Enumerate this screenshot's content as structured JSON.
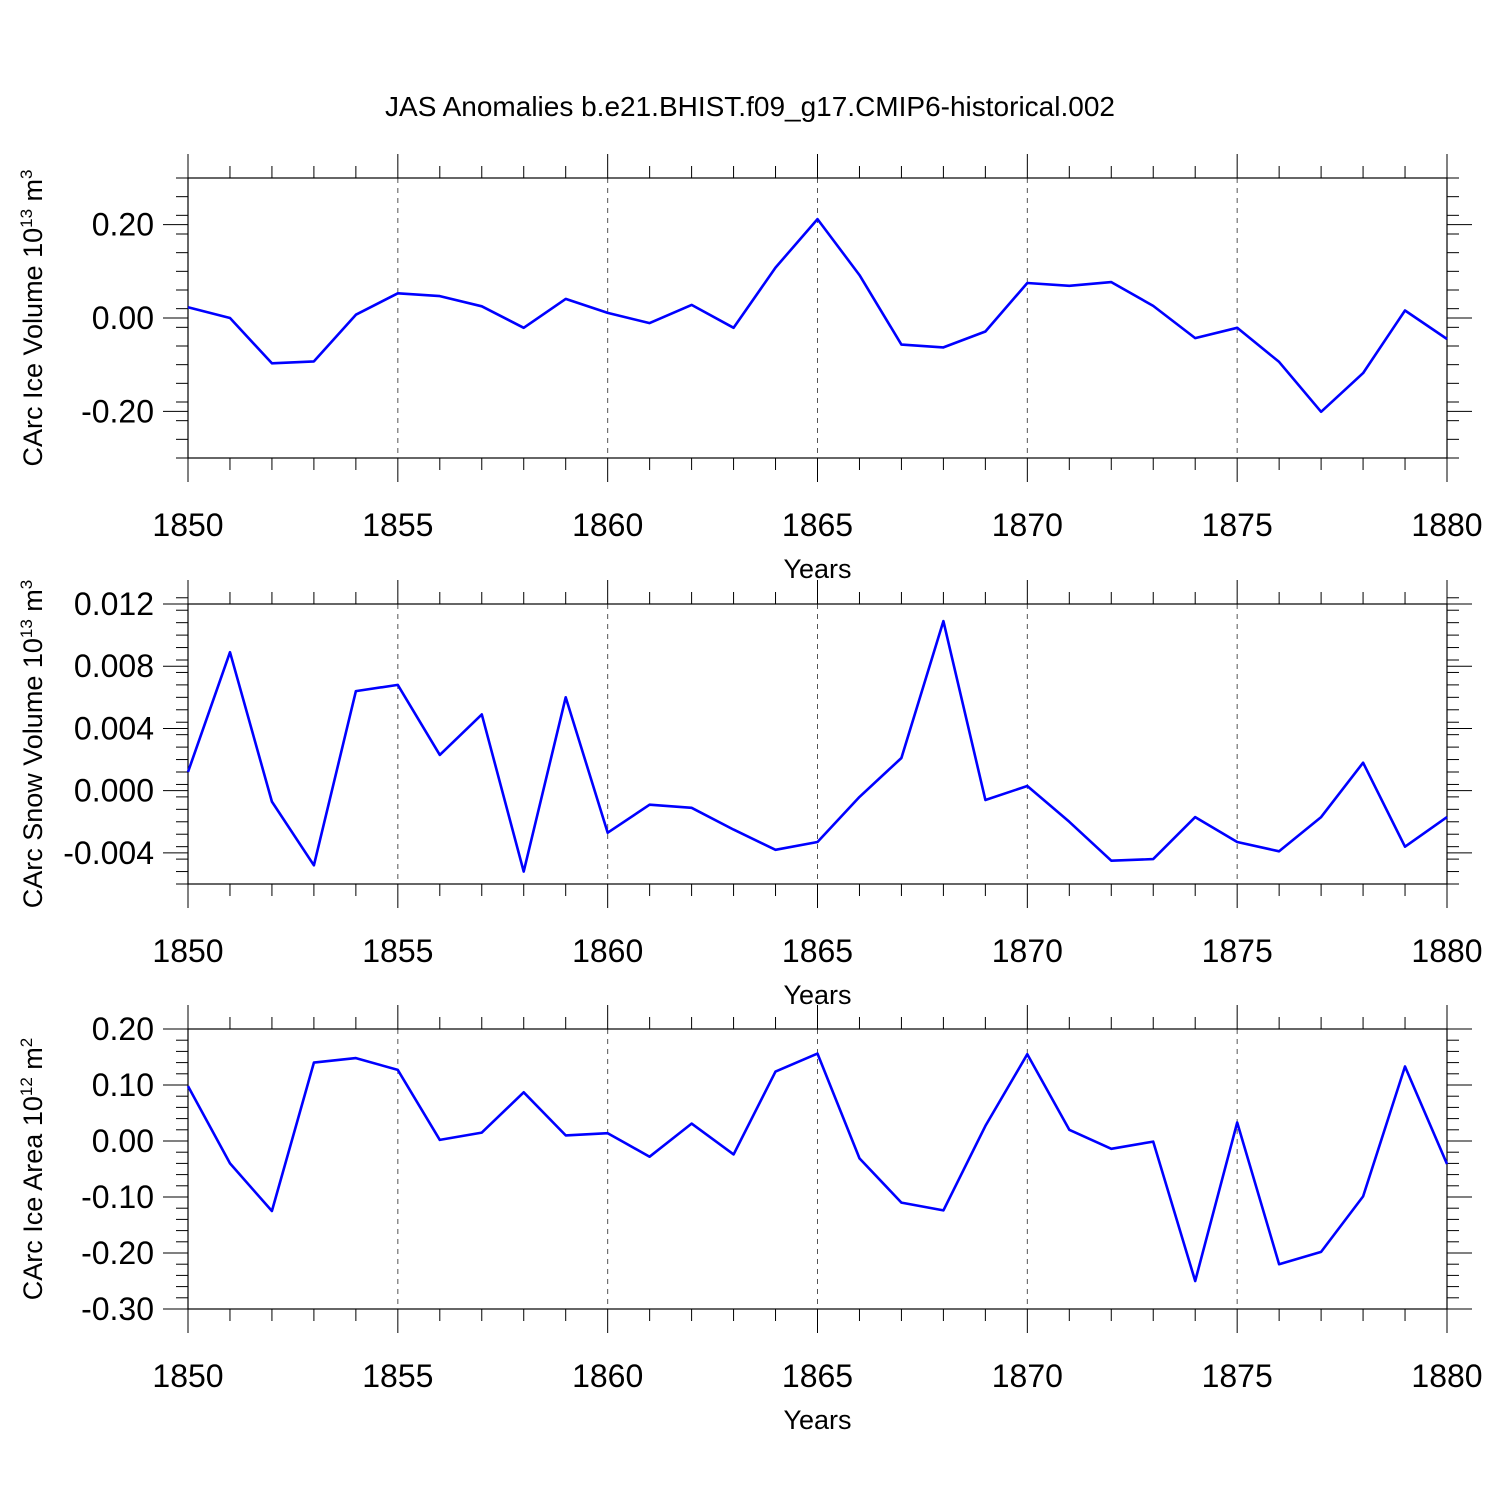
{
  "figure": {
    "title": "JAS Anomalies b.e21.BHIST.f09_g17.CMIP6-historical.002",
    "line_color": "#0000ff"
  },
  "chart_data": [
    {
      "type": "line",
      "ylabel": "CArc Ice Volume 10",
      "ylabel_sup": "13",
      "ylabel_unit": "m",
      "ylabel_unit_sup": "3",
      "xlabel": "Years",
      "xlim": [
        1850,
        1880
      ],
      "ylim": [
        -0.3,
        0.3
      ],
      "x_ticks": [
        1850,
        1855,
        1860,
        1865,
        1870,
        1875,
        1880
      ],
      "x_tick_labels": [
        "1850",
        "1855",
        "1860",
        "1865",
        "1870",
        "1875",
        "1880"
      ],
      "y_ticks": [
        -0.2,
        0.0,
        0.2
      ],
      "y_tick_labels": [
        "-0.20",
        "0.00",
        "0.20"
      ],
      "y_minor_step": 0.04,
      "grid": "dashed vertical",
      "x": [
        1850,
        1851,
        1852,
        1853,
        1854,
        1855,
        1856,
        1857,
        1858,
        1859,
        1860,
        1861,
        1862,
        1863,
        1864,
        1865,
        1866,
        1867,
        1868,
        1869,
        1870,
        1871,
        1872,
        1873,
        1874,
        1875,
        1876,
        1877,
        1878,
        1879,
        1880
      ],
      "series": [
        {
          "name": "CArc Ice Volume",
          "values": [
            0.023,
            0.0,
            -0.097,
            -0.093,
            0.007,
            0.053,
            0.047,
            0.025,
            -0.021,
            0.041,
            0.011,
            -0.011,
            0.028,
            -0.021,
            0.108,
            0.212,
            0.092,
            -0.057,
            -0.063,
            -0.029,
            0.075,
            0.069,
            0.077,
            0.026,
            -0.043,
            -0.021,
            -0.094,
            -0.201,
            -0.118,
            0.016,
            -0.045
          ]
        }
      ]
    },
    {
      "type": "line",
      "ylabel": "CArc Snow Volume 10",
      "ylabel_sup": "13",
      "ylabel_unit": "m",
      "ylabel_unit_sup": "3",
      "xlabel": "Years",
      "xlim": [
        1850,
        1880
      ],
      "ylim": [
        -0.006,
        0.012
      ],
      "x_ticks": [
        1850,
        1855,
        1860,
        1865,
        1870,
        1875,
        1880
      ],
      "x_tick_labels": [
        "1850",
        "1855",
        "1860",
        "1865",
        "1870",
        "1875",
        "1880"
      ],
      "y_ticks": [
        -0.004,
        0.0,
        0.004,
        0.008,
        0.012
      ],
      "y_tick_labels": [
        "-0.004",
        "0.000",
        "0.004",
        "0.008",
        "0.012"
      ],
      "y_minor_step": 0.0008,
      "grid": "dashed vertical",
      "x": [
        1850,
        1851,
        1852,
        1853,
        1854,
        1855,
        1856,
        1857,
        1858,
        1859,
        1860,
        1861,
        1862,
        1863,
        1864,
        1865,
        1866,
        1867,
        1868,
        1869,
        1870,
        1871,
        1872,
        1873,
        1874,
        1875,
        1876,
        1877,
        1878,
        1879,
        1880
      ],
      "series": [
        {
          "name": "CArc Snow Volume",
          "values": [
            0.0012,
            0.0089,
            -0.0007,
            -0.0048,
            0.0064,
            0.0068,
            0.0023,
            0.0049,
            -0.0052,
            0.006,
            -0.0027,
            -0.0009,
            -0.0011,
            -0.0025,
            -0.0038,
            -0.0033,
            -0.0004,
            0.0021,
            0.0109,
            -0.0006,
            0.0003,
            -0.002,
            -0.0045,
            -0.0044,
            -0.0017,
            -0.0033,
            -0.0039,
            -0.0017,
            0.0018,
            -0.0036,
            -0.0017
          ]
        }
      ]
    },
    {
      "type": "line",
      "ylabel": "CArc Ice Area 10",
      "ylabel_sup": "12",
      "ylabel_unit": "m",
      "ylabel_unit_sup": "2",
      "xlabel": "Years",
      "xlim": [
        1850,
        1880
      ],
      "ylim": [
        -0.3,
        0.2
      ],
      "x_ticks": [
        1850,
        1855,
        1860,
        1865,
        1870,
        1875,
        1880
      ],
      "x_tick_labels": [
        "1850",
        "1855",
        "1860",
        "1865",
        "1870",
        "1875",
        "1880"
      ],
      "y_ticks": [
        -0.3,
        -0.2,
        -0.1,
        0.0,
        0.1,
        0.2
      ],
      "y_tick_labels": [
        "-0.30",
        "-0.20",
        "-0.10",
        "0.00",
        "0.10",
        "0.20"
      ],
      "y_minor_step": 0.02,
      "grid": "dashed vertical",
      "x": [
        1850,
        1851,
        1852,
        1853,
        1854,
        1855,
        1856,
        1857,
        1858,
        1859,
        1860,
        1861,
        1862,
        1863,
        1864,
        1865,
        1866,
        1867,
        1868,
        1869,
        1870,
        1871,
        1872,
        1873,
        1874,
        1875,
        1876,
        1877,
        1878,
        1879,
        1880
      ],
      "series": [
        {
          "name": "CArc Ice Area",
          "values": [
            0.098,
            -0.04,
            -0.125,
            0.14,
            0.148,
            0.127,
            0.002,
            0.015,
            0.087,
            0.01,
            0.014,
            -0.028,
            0.031,
            -0.024,
            0.124,
            0.156,
            -0.031,
            -0.11,
            -0.124,
            0.027,
            0.155,
            0.02,
            -0.014,
            -0.001,
            -0.25,
            0.033,
            -0.22,
            -0.198,
            -0.099,
            0.133,
            -0.041
          ]
        }
      ]
    }
  ]
}
